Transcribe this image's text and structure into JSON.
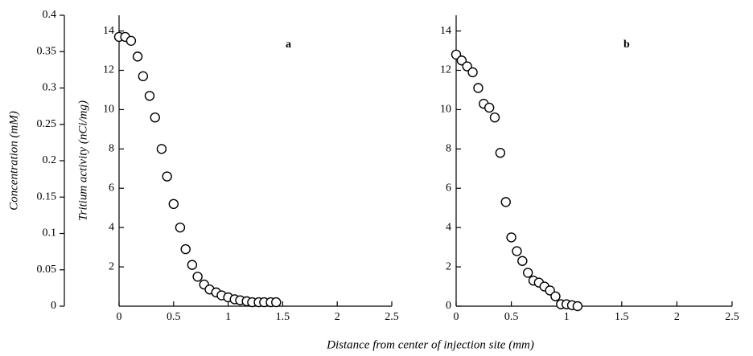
{
  "chart_data": [
    {
      "type": "scatter",
      "annotation": "a",
      "color": "#000000",
      "xlabel": "Distance from center of injection site (mm)",
      "ylabel": "Tritium activity (nCi/mg)",
      "y2label": "Concentration (mM)",
      "xlim": [
        0,
        2.5
      ],
      "xticks": [
        0,
        0.5,
        1,
        1.5,
        2,
        2.5
      ],
      "ylim": [
        0,
        14.8
      ],
      "yticks": [
        2,
        4,
        6,
        8,
        10,
        12,
        14
      ],
      "y2lim": [
        0,
        0.4
      ],
      "y2ticks": [
        0,
        0.05,
        0.1,
        0.15,
        0.2,
        0.25,
        0.3,
        0.35,
        0.4
      ],
      "x": [
        0,
        0.056,
        0.11,
        0.17,
        0.22,
        0.28,
        0.33,
        0.39,
        0.44,
        0.5,
        0.56,
        0.61,
        0.67,
        0.72,
        0.78,
        0.83,
        0.89,
        0.94,
        1.0,
        1.06,
        1.11,
        1.17,
        1.22,
        1.28,
        1.33,
        1.39,
        1.44
      ],
      "values": [
        13.7,
        13.7,
        13.5,
        12.7,
        11.7,
        10.7,
        9.6,
        8.0,
        6.6,
        5.2,
        4.0,
        2.9,
        2.1,
        1.5,
        1.1,
        0.85,
        0.7,
        0.55,
        0.45,
        0.35,
        0.3,
        0.25,
        0.2,
        0.2,
        0.2,
        0.2,
        0.2
      ]
    },
    {
      "type": "scatter",
      "annotation": "b",
      "color": "#000000",
      "xlim": [
        0,
        2.5
      ],
      "xticks": [
        0,
        0.5,
        1,
        1.5,
        2,
        2.5
      ],
      "ylim": [
        0,
        14.8
      ],
      "yticks": [
        0,
        2,
        4,
        6,
        8,
        10,
        12,
        14
      ],
      "x": [
        0,
        0.05,
        0.1,
        0.15,
        0.2,
        0.25,
        0.3,
        0.35,
        0.4,
        0.45,
        0.5,
        0.55,
        0.6,
        0.65,
        0.7,
        0.75,
        0.8,
        0.85,
        0.9,
        0.95,
        1.0,
        1.05,
        1.1
      ],
      "values": [
        12.8,
        12.5,
        12.2,
        11.9,
        11.1,
        10.3,
        10.1,
        9.6,
        7.8,
        5.3,
        3.5,
        2.8,
        2.3,
        1.7,
        1.3,
        1.2,
        1.0,
        0.8,
        0.5,
        0.1,
        0.1,
        0.05,
        0
      ]
    }
  ]
}
